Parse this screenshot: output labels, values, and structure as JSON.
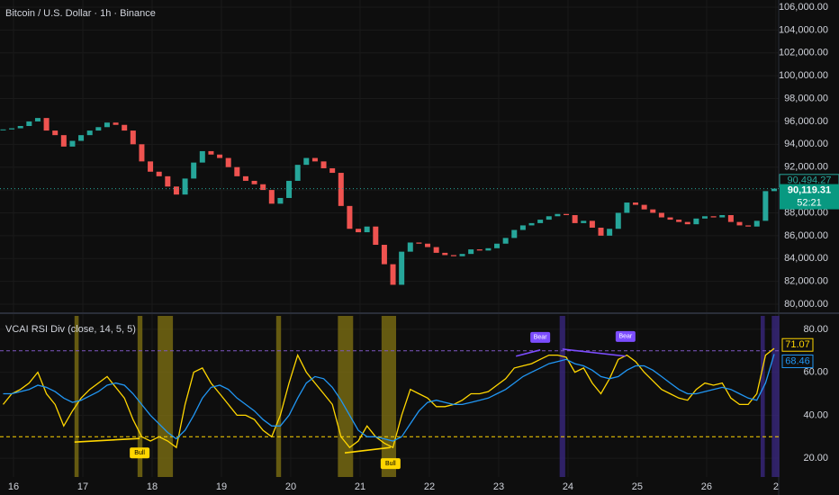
{
  "chart_data": [
    {
      "type": "candlestick",
      "title": "Bitcoin / U.S. Dollar · 1h · Binance",
      "up_color": "#26a69a",
      "down_color": "#ef5350",
      "grid": true,
      "xlim": [
        15.805,
        27.04
      ],
      "ylim": [
        79450,
        106630
      ],
      "xticks": [
        16,
        17,
        18,
        19,
        20,
        21,
        22,
        23,
        24,
        25,
        26,
        {
          "value": 27,
          "label": "2"
        }
      ],
      "yticks": [
        {
          "value": 80000,
          "label": "80,000.00"
        },
        {
          "value": 82000,
          "label": "82,000.00"
        },
        {
          "value": 84000,
          "label": "84,000.00"
        },
        {
          "value": 86000,
          "label": "86,000.00"
        },
        {
          "value": 88000,
          "label": "88,000.00"
        },
        {
          "value": 90000,
          "label": "90,000.00"
        },
        {
          "value": 92000,
          "label": "92,000.00"
        },
        {
          "value": 94000,
          "label": "94,000.00"
        },
        {
          "value": 96000,
          "label": "96,000.00"
        },
        {
          "value": 98000,
          "label": "98,000.00"
        },
        {
          "value": 100000,
          "label": "100,000.00"
        },
        {
          "value": 102000,
          "label": "102,000.00"
        },
        {
          "value": 104000,
          "label": "104,000.00"
        },
        {
          "value": 106000,
          "label": "106,000.00"
        }
      ],
      "x": [
        15.85,
        15.975,
        16.1,
        16.225,
        16.35,
        16.475,
        16.6,
        16.725,
        16.85,
        16.975,
        17.1,
        17.225,
        17.35,
        17.475,
        17.6,
        17.725,
        17.85,
        17.975,
        18.1,
        18.225,
        18.35,
        18.475,
        18.6,
        18.725,
        18.85,
        18.975,
        19.1,
        19.225,
        19.35,
        19.475,
        19.6,
        19.725,
        19.85,
        19.975,
        20.1,
        20.225,
        20.35,
        20.475,
        20.6,
        20.725,
        20.85,
        20.975,
        21.1,
        21.225,
        21.35,
        21.475,
        21.6,
        21.725,
        21.85,
        21.975,
        22.1,
        22.225,
        22.35,
        22.475,
        22.6,
        22.725,
        22.85,
        22.975,
        23.1,
        23.225,
        23.35,
        23.475,
        23.6,
        23.725,
        23.85,
        23.975,
        24.1,
        24.225,
        24.35,
        24.475,
        24.6,
        24.725,
        24.85,
        24.975,
        25.1,
        25.225,
        25.35,
        25.475,
        25.6,
        25.725,
        25.85,
        25.975,
        26.1,
        26.225,
        26.35,
        26.475,
        26.6,
        26.725,
        26.85,
        26.975
      ],
      "values": [
        95300,
        95400,
        95600,
        96000,
        96300,
        95200,
        94800,
        93800,
        94300,
        94800,
        95200,
        95500,
        95900,
        95700,
        95200,
        94000,
        92500,
        91600,
        91200,
        90300,
        89600,
        91000,
        92400,
        93400,
        93100,
        92800,
        92000,
        91200,
        90800,
        90500,
        90000,
        88800,
        89300,
        90800,
        92200,
        92800,
        92500,
        91900,
        91500,
        88600,
        86600,
        86300,
        86800,
        85200,
        83500,
        81700,
        84600,
        85400,
        85300,
        85000,
        84500,
        84300,
        84200,
        84400,
        84800,
        84700,
        84900,
        85300,
        85800,
        86500,
        86900,
        87100,
        87400,
        87700,
        87900,
        87800,
        87100,
        87300,
        86700,
        86000,
        86600,
        88000,
        88900,
        88700,
        88300,
        88000,
        87600,
        87400,
        87200,
        87000,
        87500,
        87700,
        87600,
        87800,
        87200,
        86900,
        86800,
        87300,
        89900,
        90119.31
      ],
      "last_price": {
        "value": 90119.31,
        "label": "90,119.31"
      },
      "countdown": "52:21",
      "reference_price": {
        "value": 90494.27,
        "label": "90,494.27"
      }
    },
    {
      "type": "line",
      "title": "VCAI RSI Div (close, 14, 5, 5)",
      "grid": true,
      "xlim": [
        15.805,
        27.04
      ],
      "ylim": [
        11.25,
        86.25
      ],
      "yticks": [
        {
          "value": 20,
          "label": "20.00"
        },
        {
          "value": 40,
          "label": "40.00"
        },
        {
          "value": 60,
          "label": "60.00"
        },
        {
          "value": 80,
          "label": "80.00"
        }
      ],
      "levels": [
        {
          "value": 70,
          "color": "#7e57c2"
        },
        {
          "value": 30,
          "color": "#ffd600"
        }
      ],
      "highlights": [
        {
          "x": [
            16.88,
            16.94
          ],
          "color": "#8a7a12"
        },
        {
          "x": [
            17.79,
            17.86
          ],
          "color": "#8a7a12"
        },
        {
          "x": [
            18.08,
            18.3
          ],
          "color": "#8a7a12"
        },
        {
          "x": [
            19.79,
            19.86
          ],
          "color": "#8a7a12"
        },
        {
          "x": [
            20.68,
            20.9
          ],
          "color": "#8a7a12"
        },
        {
          "x": [
            21.31,
            21.52
          ],
          "color": "#8a7a12"
        },
        {
          "x": [
            23.88,
            23.96
          ],
          "color": "#3d2a8c"
        },
        {
          "x": [
            26.78,
            26.84
          ],
          "color": "#3d2a8c"
        },
        {
          "x": [
            26.94,
            27.05
          ],
          "color": "#3d2a8c"
        }
      ],
      "divergences": [
        {
          "label": "Bull",
          "x": [
            16.88,
            17.82
          ],
          "y": [
            27.5,
            29.2
          ],
          "color": "#ffd600",
          "text_color": "#000000"
        },
        {
          "label": "Bull",
          "x": [
            20.78,
            21.44
          ],
          "y": [
            22.5,
            25
          ],
          "color": "#ffd600",
          "text_color": "#000000"
        },
        {
          "label": "Bear",
          "x": [
            23.25,
            23.6
          ],
          "y": [
            67.5,
            70.4
          ],
          "color": "#7c4dff",
          "text_color": "#ffffff"
        },
        {
          "label": "Bear",
          "x": [
            23.92,
            24.83
          ],
          "y": [
            70.8,
            67.5
          ],
          "color": "#7c4dff",
          "text_color": "#ffffff"
        }
      ],
      "series": [
        {
          "color": "#ffd600",
          "values": [
            45,
            50,
            52,
            55,
            60,
            50,
            45,
            35,
            42,
            48,
            52,
            55,
            58,
            53,
            48,
            38,
            30,
            28,
            30,
            28,
            25,
            45,
            60,
            62,
            55,
            50,
            45,
            40,
            40,
            38,
            33,
            30,
            40,
            55,
            68,
            60,
            55,
            50,
            45,
            30,
            25,
            28,
            35,
            30,
            27,
            25,
            40,
            52,
            50,
            48,
            44,
            44,
            45,
            47,
            50,
            50,
            51,
            54,
            57,
            62,
            63,
            64,
            66,
            68,
            68,
            67,
            60,
            62,
            55,
            50,
            57,
            66,
            68,
            65,
            60,
            56,
            52,
            50,
            48,
            47,
            52,
            55,
            54,
            55,
            48,
            45,
            45,
            50,
            68,
            71.07
          ],
          "value_labels": [
            null,
            null,
            null,
            null,
            null,
            null,
            null,
            null,
            null,
            null,
            null,
            null,
            null,
            null,
            null,
            null,
            null,
            null,
            null,
            null,
            null,
            null,
            null,
            null,
            null,
            null,
            null,
            null,
            null,
            null,
            null,
            null,
            null,
            null,
            null,
            null,
            null,
            null,
            null,
            null,
            null,
            null,
            null,
            null,
            null,
            null,
            null,
            null,
            null,
            null,
            null,
            null,
            null,
            null,
            null,
            null,
            null,
            null,
            null,
            null,
            null,
            null,
            null,
            null,
            null,
            null,
            null,
            null,
            null,
            null,
            null,
            null,
            null,
            null,
            null,
            null,
            null,
            null,
            null,
            null,
            null,
            null,
            null,
            null,
            null,
            null,
            null,
            null,
            null,
            "71.07"
          ]
        },
        {
          "color": "#2196f3",
          "values": [
            50,
            50,
            51,
            52,
            54,
            53,
            51,
            48,
            46,
            47,
            49,
            51,
            54,
            55,
            54,
            50,
            45,
            40,
            36,
            32,
            29,
            33,
            40,
            48,
            53,
            54,
            52,
            48,
            45,
            42,
            38,
            35,
            35,
            40,
            48,
            55,
            58,
            57,
            53,
            47,
            40,
            33,
            30,
            30,
            29,
            28,
            30,
            36,
            42,
            46,
            47,
            46,
            45,
            45,
            46,
            47,
            48,
            50,
            52,
            55,
            58,
            60,
            62,
            64,
            65,
            66,
            64,
            63,
            61,
            58,
            57,
            58,
            61,
            63,
            63,
            61,
            58,
            55,
            52,
            50,
            50,
            51,
            52,
            53,
            52,
            50,
            48,
            47,
            55,
            68.46
          ],
          "value_labels": [
            null,
            null,
            null,
            null,
            null,
            null,
            null,
            null,
            null,
            null,
            null,
            null,
            null,
            null,
            null,
            null,
            null,
            null,
            null,
            null,
            null,
            null,
            null,
            null,
            null,
            null,
            null,
            null,
            null,
            null,
            null,
            null,
            null,
            null,
            null,
            null,
            null,
            null,
            null,
            null,
            null,
            null,
            null,
            null,
            null,
            null,
            null,
            null,
            null,
            null,
            null,
            null,
            null,
            null,
            null,
            null,
            null,
            null,
            null,
            null,
            null,
            null,
            null,
            null,
            null,
            null,
            null,
            null,
            null,
            null,
            null,
            null,
            null,
            null,
            null,
            null,
            null,
            null,
            null,
            null,
            null,
            null,
            null,
            null,
            null,
            null,
            null,
            null,
            null,
            "68.46"
          ]
        }
      ]
    }
  ]
}
